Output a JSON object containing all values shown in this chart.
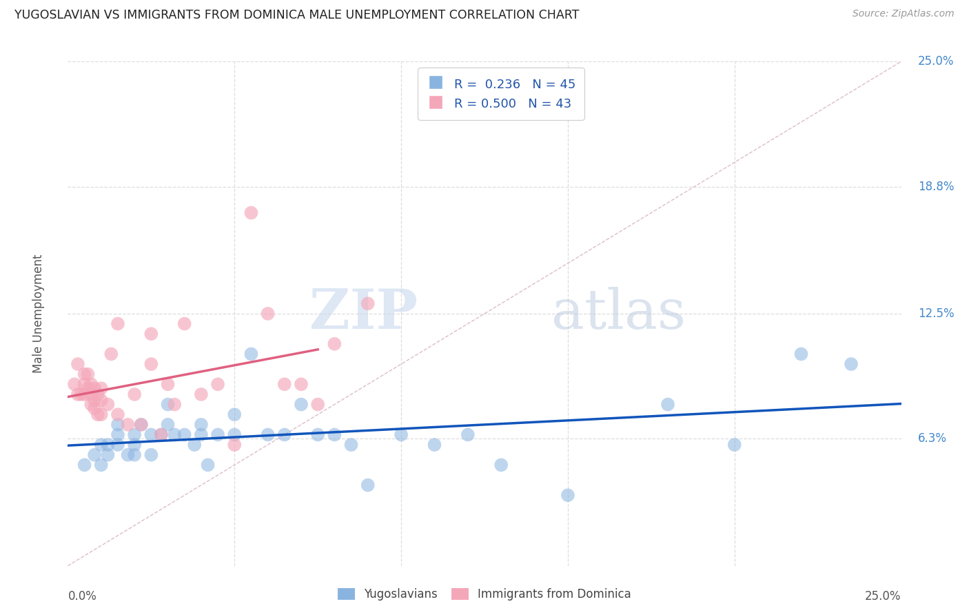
{
  "title": "YUGOSLAVIAN VS IMMIGRANTS FROM DOMINICA MALE UNEMPLOYMENT CORRELATION CHART",
  "source": "Source: ZipAtlas.com",
  "ylabel": "Male Unemployment",
  "xmin": 0.0,
  "xmax": 0.25,
  "ymin": 0.0,
  "ymax": 0.25,
  "watermark_zip": "ZIP",
  "watermark_atlas": "atlas",
  "blue_color": "#8ab4e0",
  "pink_color": "#f4a7b9",
  "blue_line_color": "#1155bb",
  "pink_line_color": "#e06080",
  "diag_line_color": "#cccccc",
  "grid_color": "#dddddd",
  "right_tick_color": "#4488cc",
  "blue_scatter_x": [
    0.005,
    0.008,
    0.01,
    0.01,
    0.012,
    0.012,
    0.015,
    0.015,
    0.015,
    0.018,
    0.02,
    0.02,
    0.02,
    0.022,
    0.025,
    0.025,
    0.028,
    0.03,
    0.03,
    0.032,
    0.035,
    0.038,
    0.04,
    0.04,
    0.042,
    0.045,
    0.05,
    0.05,
    0.055,
    0.06,
    0.065,
    0.07,
    0.075,
    0.08,
    0.085,
    0.09,
    0.1,
    0.11,
    0.12,
    0.13,
    0.15,
    0.18,
    0.2,
    0.22,
    0.235
  ],
  "blue_scatter_y": [
    0.05,
    0.055,
    0.05,
    0.06,
    0.055,
    0.06,
    0.06,
    0.065,
    0.07,
    0.055,
    0.06,
    0.065,
    0.055,
    0.07,
    0.055,
    0.065,
    0.065,
    0.07,
    0.08,
    0.065,
    0.065,
    0.06,
    0.07,
    0.065,
    0.05,
    0.065,
    0.075,
    0.065,
    0.105,
    0.065,
    0.065,
    0.08,
    0.065,
    0.065,
    0.06,
    0.04,
    0.065,
    0.06,
    0.065,
    0.05,
    0.035,
    0.08,
    0.06,
    0.105,
    0.1
  ],
  "pink_scatter_x": [
    0.002,
    0.003,
    0.003,
    0.004,
    0.005,
    0.005,
    0.005,
    0.006,
    0.006,
    0.007,
    0.007,
    0.007,
    0.008,
    0.008,
    0.008,
    0.009,
    0.009,
    0.01,
    0.01,
    0.01,
    0.012,
    0.013,
    0.015,
    0.015,
    0.018,
    0.02,
    0.022,
    0.025,
    0.025,
    0.028,
    0.03,
    0.032,
    0.035,
    0.04,
    0.045,
    0.05,
    0.055,
    0.06,
    0.065,
    0.07,
    0.075,
    0.08,
    0.09
  ],
  "pink_scatter_y": [
    0.09,
    0.085,
    0.1,
    0.085,
    0.095,
    0.09,
    0.085,
    0.095,
    0.088,
    0.09,
    0.085,
    0.08,
    0.088,
    0.082,
    0.078,
    0.085,
    0.075,
    0.088,
    0.082,
    0.075,
    0.08,
    0.105,
    0.075,
    0.12,
    0.07,
    0.085,
    0.07,
    0.115,
    0.1,
    0.065,
    0.09,
    0.08,
    0.12,
    0.085,
    0.09,
    0.06,
    0.175,
    0.125,
    0.09,
    0.09,
    0.08,
    0.11,
    0.13
  ],
  "blue_R": 0.236,
  "blue_N": 45,
  "pink_R": 0.5,
  "pink_N": 43,
  "pink_line_xmax": 0.075
}
